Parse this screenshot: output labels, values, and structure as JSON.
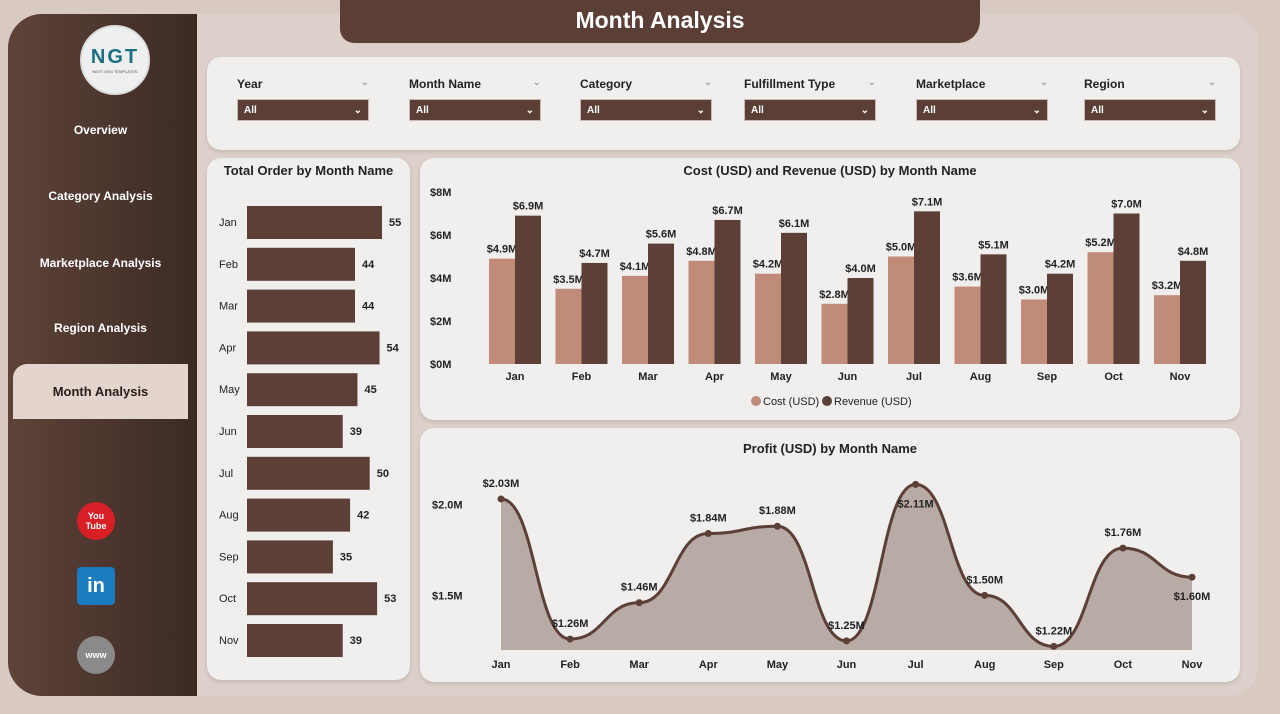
{
  "header": {
    "title": "Month Analysis"
  },
  "logo": {
    "text": "NGT",
    "subtext": "NEXT GEN TEMPLATES"
  },
  "sidebar": {
    "items": [
      {
        "label": "Overview"
      },
      {
        "label": "Category Analysis"
      },
      {
        "label": "Marketplace Analysis"
      },
      {
        "label": "Region Analysis"
      },
      {
        "label": "Month Analysis",
        "active": true
      }
    ],
    "social": [
      {
        "icon": "youtube-icon",
        "label": "You Tube"
      },
      {
        "icon": "linkedin-icon",
        "label": "in"
      },
      {
        "icon": "globe-icon",
        "label": "www"
      }
    ]
  },
  "filters": [
    {
      "label": "Year",
      "value": "All"
    },
    {
      "label": "Month Name",
      "value": "All"
    },
    {
      "label": "Category",
      "value": "All"
    },
    {
      "label": "Fulfillment Type",
      "value": "All"
    },
    {
      "label": "Marketplace",
      "value": "All"
    },
    {
      "label": "Region",
      "value": "All"
    }
  ],
  "colors": {
    "dark": "#5c4037",
    "cost": "#c08b78",
    "area": "#b8aaa5"
  },
  "chart_data": [
    {
      "type": "bar",
      "orientation": "horizontal",
      "title": "Total Order by Month Name",
      "categories": [
        "Jan",
        "Feb",
        "Mar",
        "Apr",
        "May",
        "Jun",
        "Jul",
        "Aug",
        "Sep",
        "Oct",
        "Nov"
      ],
      "values": [
        55,
        44,
        44,
        54,
        45,
        39,
        50,
        42,
        35,
        53,
        39
      ],
      "xlim": [
        0,
        55
      ]
    },
    {
      "type": "bar",
      "title": "Cost (USD) and Revenue (USD) by Month Name",
      "categories": [
        "Jan",
        "Feb",
        "Mar",
        "Apr",
        "May",
        "Jun",
        "Jul",
        "Aug",
        "Sep",
        "Oct",
        "Nov"
      ],
      "ylim": [
        0,
        8
      ],
      "yticks": [
        "$0M",
        "$2M",
        "$4M",
        "$6M",
        "$8M"
      ],
      "legend": "bottom",
      "series": [
        {
          "name": "Cost (USD)",
          "values": [
            4.9,
            3.5,
            4.1,
            4.8,
            4.2,
            2.8,
            5.0,
            3.6,
            3.0,
            5.2,
            3.2
          ],
          "labels": [
            "$4.9M",
            "$3.5M",
            "$4.1M",
            "$4.8M",
            "$4.2M",
            "$2.8M",
            "$5.0M",
            "$3.6M",
            "$3.0M",
            "$5.2M",
            "$3.2M"
          ]
        },
        {
          "name": "Revenue (USD)",
          "values": [
            6.9,
            4.7,
            5.6,
            6.7,
            6.1,
            4.0,
            7.1,
            5.1,
            4.2,
            7.0,
            4.8
          ],
          "labels": [
            "$6.9M",
            "$4.7M",
            "$5.6M",
            "$6.7M",
            "$6.1M",
            "$4.0M",
            "$7.1M",
            "$5.1M",
            "$4.2M",
            "$7.0M",
            "$4.8M"
          ]
        }
      ]
    },
    {
      "type": "area",
      "title": "Profit (USD) by Month Name",
      "categories": [
        "Jan",
        "Feb",
        "Mar",
        "Apr",
        "May",
        "Jun",
        "Jul",
        "Aug",
        "Sep",
        "Oct",
        "Nov"
      ],
      "values": [
        2.03,
        1.26,
        1.46,
        1.84,
        1.88,
        1.25,
        2.11,
        1.5,
        1.22,
        1.76,
        1.6
      ],
      "labels": [
        "$2.03M",
        "$1.26M",
        "$1.46M",
        "$1.84M",
        "$1.88M",
        "$1.25M",
        "$2.11M",
        "$1.50M",
        "$1.22M",
        "$1.76M",
        "$1.60M"
      ],
      "yticks": [
        "$1.5M",
        "$2.0M"
      ],
      "ylim": [
        1.2,
        2.2
      ]
    }
  ]
}
